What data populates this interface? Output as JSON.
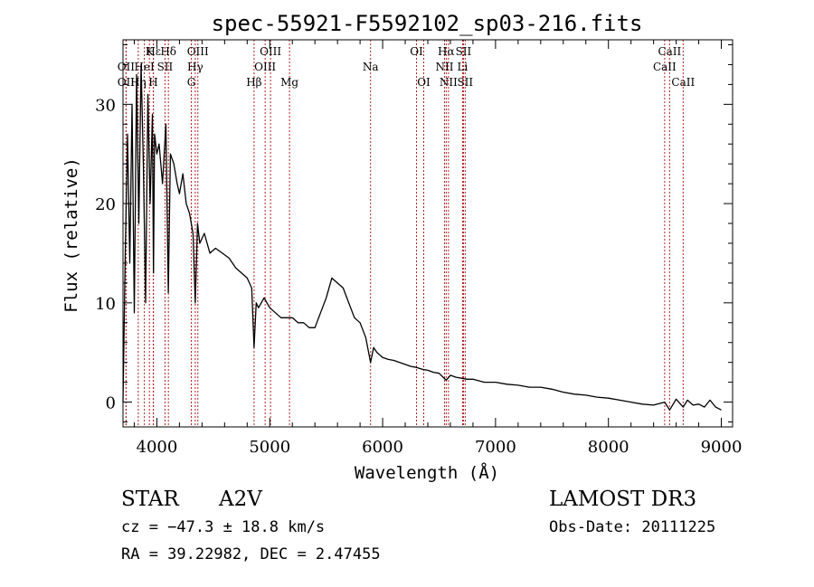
{
  "chart_data": {
    "type": "line",
    "title": "spec-55921-F5592102_sp03-216.fits",
    "xlabel": "Wavelength (Å)",
    "ylabel": "Flux (relative)",
    "xlim": [
      3700,
      9100
    ],
    "ylim": [
      -2.5,
      36.5
    ],
    "xticks": [
      4000,
      5000,
      6000,
      7000,
      8000,
      9000
    ],
    "xtick_labels": [
      "4000",
      "5000",
      "6000",
      "7000",
      "8000",
      "9000"
    ],
    "yticks": [
      0,
      10,
      20,
      30
    ],
    "ytick_labels": [
      "0",
      "10",
      "20",
      "30"
    ],
    "grid": false,
    "series": [
      {
        "name": "spectrum",
        "color": "#000000",
        "x": [
          3700,
          3720,
          3740,
          3760,
          3780,
          3800,
          3820,
          3840,
          3860,
          3880,
          3900,
          3920,
          3940,
          3960,
          3970,
          3980,
          4000,
          4020,
          4050,
          4080,
          4101,
          4120,
          4150,
          4180,
          4200,
          4230,
          4260,
          4290,
          4320,
          4340,
          4360,
          4380,
          4420,
          4470,
          4520,
          4580,
          4640,
          4700,
          4750,
          4800,
          4840,
          4861,
          4880,
          4900,
          4950,
          5000,
          5050,
          5100,
          5150,
          5200,
          5250,
          5300,
          5350,
          5400,
          5450,
          5500,
          5550,
          5600,
          5650,
          5700,
          5750,
          5800,
          5850,
          5893,
          5920,
          5950,
          6000,
          6050,
          6100,
          6150,
          6200,
          6250,
          6300,
          6350,
          6400,
          6450,
          6500,
          6563,
          6600,
          6650,
          6700,
          6750,
          6800,
          6900,
          7000,
          7100,
          7200,
          7300,
          7400,
          7500,
          7600,
          7700,
          7800,
          7900,
          8000,
          8100,
          8200,
          8300,
          8400,
          8498,
          8542,
          8600,
          8662,
          8700,
          8750,
          8800,
          8850,
          8900,
          8950,
          9000
        ],
        "y": [
          0,
          15,
          27,
          14,
          30,
          9,
          33,
          18,
          34,
          24,
          10,
          31,
          20,
          29,
          13,
          27,
          25,
          26,
          22,
          28,
          11,
          25,
          24,
          22,
          21,
          23,
          20,
          19,
          17,
          10,
          18,
          16,
          17,
          15,
          15.5,
          15,
          14.5,
          13.5,
          13,
          12.5,
          11.5,
          5.5,
          10,
          9.5,
          10.5,
          9.5,
          9,
          8.5,
          8.5,
          8.5,
          8,
          8,
          7.5,
          7.5,
          9,
          10.5,
          12.5,
          12,
          11.5,
          10,
          8.5,
          8,
          6.5,
          4,
          5.5,
          5,
          4.5,
          4.3,
          4.2,
          4.0,
          3.8,
          3.6,
          3.5,
          3.3,
          3.2,
          3.0,
          2.9,
          2.2,
          2.7,
          2.5,
          2.4,
          2.3,
          2.3,
          2.0,
          2.0,
          1.8,
          1.7,
          1.5,
          1.5,
          1.3,
          1.0,
          0.8,
          0.7,
          0.5,
          0.4,
          0.2,
          0.0,
          -0.2,
          -0.3,
          0.0,
          -0.8,
          0.3,
          -0.5,
          0.2,
          -0.3,
          -0.2,
          -0.5,
          0.2,
          -0.5,
          -0.8
        ]
      }
    ],
    "lines": [
      {
        "label": "Hε",
        "x": 3970,
        "row": 0
      },
      {
        "label": "K",
        "x": 3934,
        "row": 0
      },
      {
        "label": "Hδ",
        "x": 4102,
        "row": 0
      },
      {
        "label": "OIII",
        "x": 4363,
        "row": 0
      },
      {
        "label": "OIII",
        "x": 5007,
        "row": 0
      },
      {
        "label": "OI",
        "x": 6300,
        "row": 0
      },
      {
        "label": "Hα",
        "x": 6563,
        "row": 0
      },
      {
        "label": "SII",
        "x": 6716,
        "row": 0
      },
      {
        "label": "CaII",
        "x": 8542,
        "row": 0
      },
      {
        "label": "OII",
        "x": 3727,
        "row": 1
      },
      {
        "label": "HeI",
        "x": 3889,
        "row": 1
      },
      {
        "label": "SII",
        "x": 4072,
        "row": 1
      },
      {
        "label": "Hγ",
        "x": 4340,
        "row": 1
      },
      {
        "label": "OIII",
        "x": 4959,
        "row": 1
      },
      {
        "label": "Na",
        "x": 5893,
        "row": 1
      },
      {
        "label": "NII",
        "x": 6548,
        "row": 1
      },
      {
        "label": "Li",
        "x": 6708,
        "row": 1
      },
      {
        "label": "CaII",
        "x": 8498,
        "row": 1
      },
      {
        "label": "OII",
        "x": 3727,
        "row": 2
      },
      {
        "label": "Hη",
        "x": 3835,
        "row": 2
      },
      {
        "label": "H",
        "x": 3968,
        "row": 2
      },
      {
        "label": "G",
        "x": 4305,
        "row": 2
      },
      {
        "label": "Hβ",
        "x": 4861,
        "row": 2
      },
      {
        "label": "Mg",
        "x": 5175,
        "row": 2
      },
      {
        "label": "OI",
        "x": 6364,
        "row": 2
      },
      {
        "label": "NII",
        "x": 6583,
        "row": 2
      },
      {
        "label": "SII",
        "x": 6731,
        "row": 2
      },
      {
        "label": "CaII",
        "x": 8662,
        "row": 2
      }
    ],
    "line_color": "#b22222"
  },
  "info": {
    "object_class": "STAR",
    "subclass": "A2V",
    "survey": "LAMOST DR3",
    "cz": "cz = −47.3 ± 18.8 km/s",
    "obs_date": "Obs-Date: 20111225",
    "coords": "RA =  39.22982, DEC =   2.47455"
  }
}
